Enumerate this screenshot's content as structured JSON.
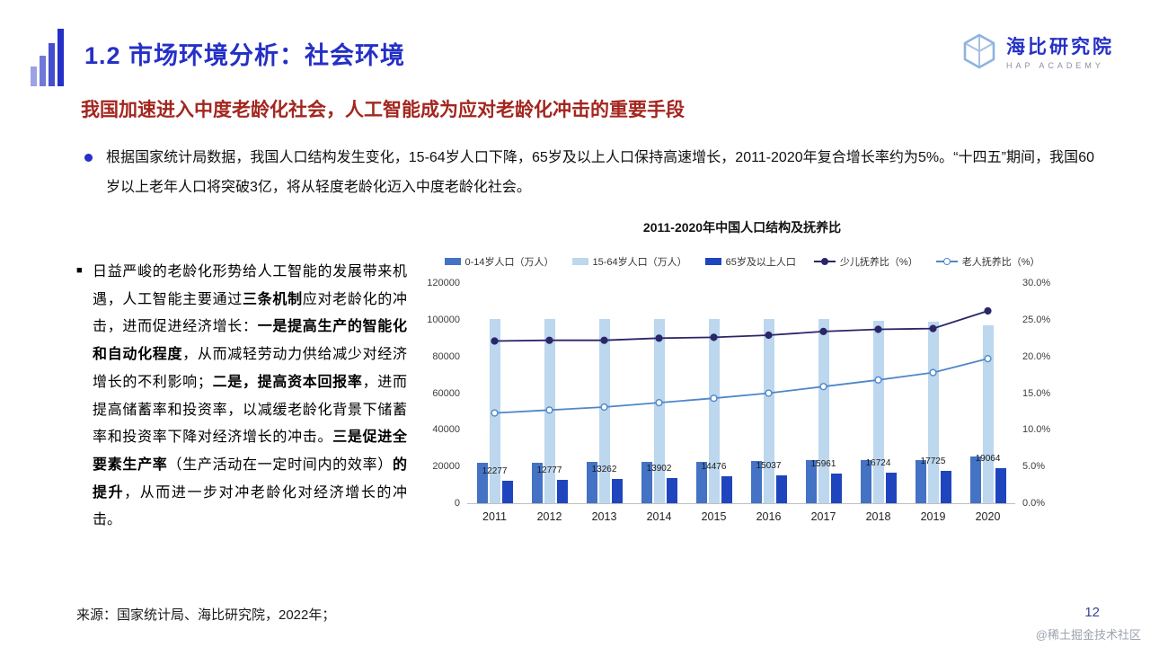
{
  "header": {
    "title": "1.2 市场环境分析：社会环境",
    "logo": {
      "name": "海比研究院",
      "subtitle": "HAP ACADEMY"
    }
  },
  "heading": "我国加速进入中度老龄化社会，人工智能成为应对老龄化冲击的重要手段",
  "intro": "根据国家统计局数据，我国人口结构发生变化，15-64岁人口下降，65岁及以上人口保持高速增长，2011-2020年复合增长率约为5%。“十四五”期间，我国60岁以上老年人口将突破3亿，将从轻度老龄化迈入中度老龄化社会。",
  "left_block": {
    "segments": [
      {
        "t": "日益严峻的老龄化形势给人工智能的发展带来机遇，人工智能主要通过",
        "b": false
      },
      {
        "t": "三条机制",
        "b": true
      },
      {
        "t": "应对老龄化的冲击，进而促进经济增长：",
        "b": false
      },
      {
        "t": "一是提高生产的智能化和自动化程度",
        "b": true
      },
      {
        "t": "，从而减轻劳动力供给减少对经济增长的不利影响；",
        "b": false
      },
      {
        "t": "二是，提高资本回报率",
        "b": true
      },
      {
        "t": "，进而提高储蓄率和投资率，以减缓老龄化背景下储蓄率和投资率下降对经济增长的冲击。",
        "b": false
      },
      {
        "t": "三是促进全要素生产率",
        "b": true
      },
      {
        "t": "（生产活动在一定时间内的效率）",
        "b": false
      },
      {
        "t": "的提升",
        "b": true
      },
      {
        "t": "，从而进一步对冲老龄化对经济增长的冲击。",
        "b": false
      }
    ]
  },
  "chart_data": {
    "type": "bar",
    "subtype": "combo-bar-line",
    "title": "2011-2020年中国人口结构及抚养比",
    "categories": [
      "2011",
      "2012",
      "2013",
      "2014",
      "2015",
      "2016",
      "2017",
      "2018",
      "2019",
      "2020"
    ],
    "bar_series": [
      {
        "name": "0-14岁人口（万人）",
        "color": "#4472C4",
        "axis": "left",
        "show_labels": false,
        "values": [
          22164,
          22287,
          22329,
          22558,
          22715,
          23091,
          23348,
          23523,
          23492,
          25277
        ]
      },
      {
        "name": "15-64岁人口（万人）",
        "color": "#BDD7EE",
        "axis": "left",
        "show_labels": false,
        "values": [
          100283,
          100403,
          100582,
          100469,
          100361,
          100260,
          100202,
          99357,
          98914,
          96871
        ]
      },
      {
        "name": "65岁及以上人口",
        "color": "#1E45BE",
        "axis": "left",
        "show_labels": true,
        "values": [
          12277,
          12777,
          13262,
          13902,
          14476,
          15037,
          15961,
          16724,
          17725,
          19064
        ]
      }
    ],
    "line_series": [
      {
        "name": "少儿抚养比（%）",
        "color": "#2A2668",
        "marker": "filled",
        "axis": "right",
        "values": [
          22.1,
          22.2,
          22.2,
          22.5,
          22.6,
          22.9,
          23.4,
          23.7,
          23.8,
          26.2
        ]
      },
      {
        "name": "老人抚养比（%）",
        "color": "#4E87C8",
        "marker": "open",
        "axis": "right",
        "values": [
          12.3,
          12.7,
          13.1,
          13.7,
          14.3,
          15.0,
          15.9,
          16.8,
          17.8,
          19.7
        ]
      }
    ],
    "left_axis": {
      "min": 0,
      "max": 120000,
      "ticks": [
        "0",
        "20000",
        "40000",
        "60000",
        "80000",
        "100000",
        "120000"
      ]
    },
    "right_axis": {
      "min": 0,
      "max": 30,
      "ticks": [
        "0.0%",
        "5.0%",
        "10.0%",
        "15.0%",
        "20.0%",
        "25.0%",
        "30.0%"
      ]
    },
    "legend_position": "top",
    "grid": false
  },
  "footer": {
    "source": "来源：国家统计局、海比研究院，2022年；",
    "page": "12",
    "watermark": "@稀土掘金技术社区"
  },
  "colors": {
    "title_blue": "#2530C6",
    "heading_red": "#A3261F",
    "logo_blue": "#8FB3DE"
  }
}
